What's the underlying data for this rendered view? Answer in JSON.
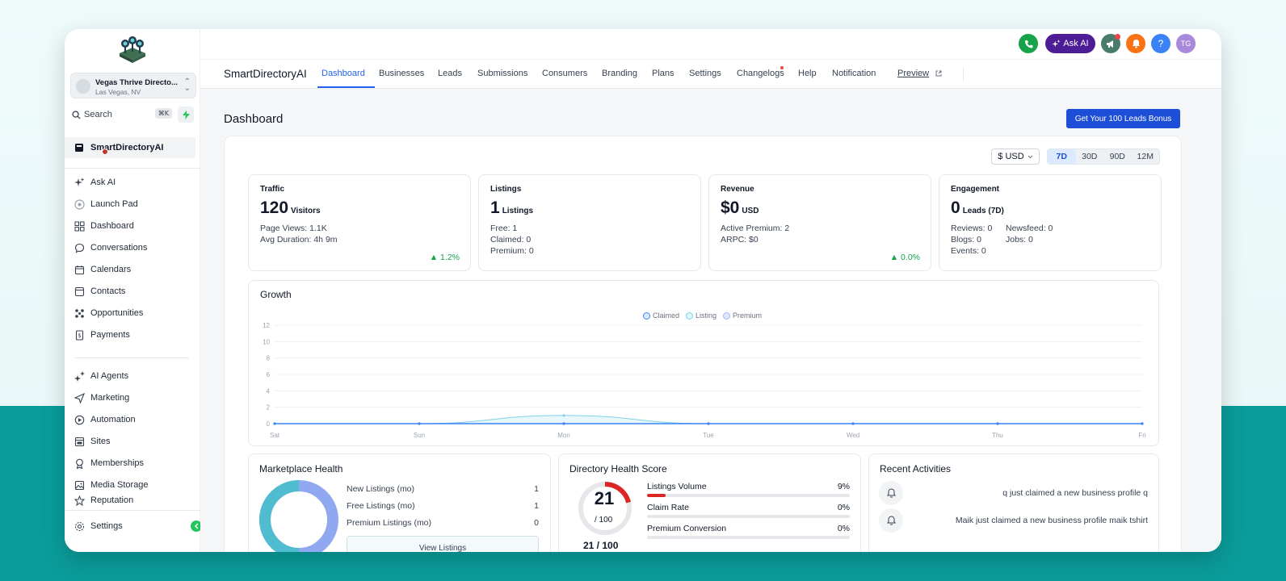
{
  "sidebar": {
    "location_name": "Vegas Thrive Directo...",
    "location_sub": "Las Vegas, NV",
    "search_label": "Search",
    "search_shortcut": "⌘K",
    "pinned_item": "SmartDirectoryAI",
    "nav_group1": [
      "Ask AI",
      "Launch Pad",
      "Dashboard",
      "Conversations",
      "Calendars",
      "Contacts",
      "Opportunities",
      "Payments"
    ],
    "nav_group2": [
      "AI Agents",
      "Marketing",
      "Automation",
      "Sites",
      "Memberships",
      "Media Storage",
      "Reputation"
    ],
    "settings_label": "Settings"
  },
  "topbar": {
    "ask_ai_label": "Ask AI",
    "avatar_initials": "TG",
    "help_label": "?"
  },
  "tabs": {
    "brand": "SmartDirectoryAI",
    "items": [
      "Dashboard",
      "Businesses",
      "Leads",
      "Submissions",
      "Consumers",
      "Branding",
      "Plans",
      "Settings",
      "Changelogs",
      "Help",
      "Notification"
    ],
    "active": "Dashboard",
    "preview_label": "Preview"
  },
  "main": {
    "title": "Dashboard",
    "bonus_button": "Get Your 100 Leads Bonus",
    "currency": "$ USD",
    "ranges": [
      "7D",
      "30D",
      "90D",
      "12M"
    ],
    "active_range": "7D"
  },
  "stats": {
    "traffic": {
      "title": "Traffic",
      "value": "120",
      "unit": "Visitors",
      "line1": "Page Views: 1.1K",
      "line2": "Avg Duration: 4h 9m",
      "trend": "▲ 1.2%"
    },
    "listings": {
      "title": "Listings",
      "value": "1",
      "unit": "Listings",
      "line1": "Free: 1",
      "line2": "Claimed: 0",
      "line3": "Premium: 0"
    },
    "revenue": {
      "title": "Revenue",
      "value": "$0",
      "unit": "USD",
      "line1": "Active Premium: 2",
      "line2": "ARPC: $0",
      "trend": "▲ 0.0%"
    },
    "engagement": {
      "title": "Engagement",
      "value": "0",
      "unit": "Leads (7D)",
      "reviews": "Reviews: 0",
      "newsfeed": "Newsfeed: 0",
      "blogs": "Blogs: 0",
      "jobs": "Jobs: 0",
      "events": "Events: 0"
    }
  },
  "growth": {
    "title": "Growth"
  },
  "chart_data": {
    "type": "area",
    "title": "Growth",
    "categories": [
      "Sat",
      "Sun",
      "Mon",
      "Tue",
      "Wed",
      "Thu",
      "Fri"
    ],
    "yticks": [
      0,
      2,
      4,
      6,
      8,
      10,
      12
    ],
    "ylim": [
      0,
      12
    ],
    "series": [
      {
        "name": "Claimed",
        "values": [
          0,
          0,
          0,
          0,
          0,
          0,
          0
        ],
        "color": "#3b82f6"
      },
      {
        "name": "Listing",
        "values": [
          0,
          0,
          1,
          0,
          0,
          0,
          0
        ],
        "color": "#7dd3e8"
      },
      {
        "name": "Premium",
        "values": [
          0,
          0,
          0,
          0,
          0,
          0,
          0
        ],
        "color": "#a5b4fc"
      }
    ],
    "legend": "top-center",
    "grid": true
  },
  "marketplace": {
    "title": "Marketplace Health",
    "rows": [
      {
        "label": "New Listings (mo)",
        "value": "1"
      },
      {
        "label": "Free Listings (mo)",
        "value": "1"
      },
      {
        "label": "Premium Listings (mo)",
        "value": "0"
      }
    ],
    "view_button": "View Listings"
  },
  "health_score": {
    "title": "Directory Health Score",
    "score": "21",
    "denominator": "/ 100",
    "score_fraction": 0.21,
    "below": "21 / 100",
    "metrics": [
      {
        "label": "Listings Volume",
        "value": "9%",
        "fraction": 0.09
      },
      {
        "label": "Claim Rate",
        "value": "0%",
        "fraction": 0
      },
      {
        "label": "Premium Conversion",
        "value": "0%",
        "fraction": 0
      }
    ]
  },
  "activities": {
    "title": "Recent Activities",
    "items": [
      "q just claimed a new business profile q",
      "Maik just claimed a new business profile maik tshirt"
    ]
  },
  "colors": {
    "accent": "#2563eb",
    "bonus_button": "#1d4ed8",
    "ask_ai": "#4c1d95",
    "phone": "#16a34a",
    "megaphone": "#059669",
    "bell": "#f97316",
    "help": "#3b82f6",
    "positive": "#16a34a",
    "score_ring": "#dc2626"
  }
}
